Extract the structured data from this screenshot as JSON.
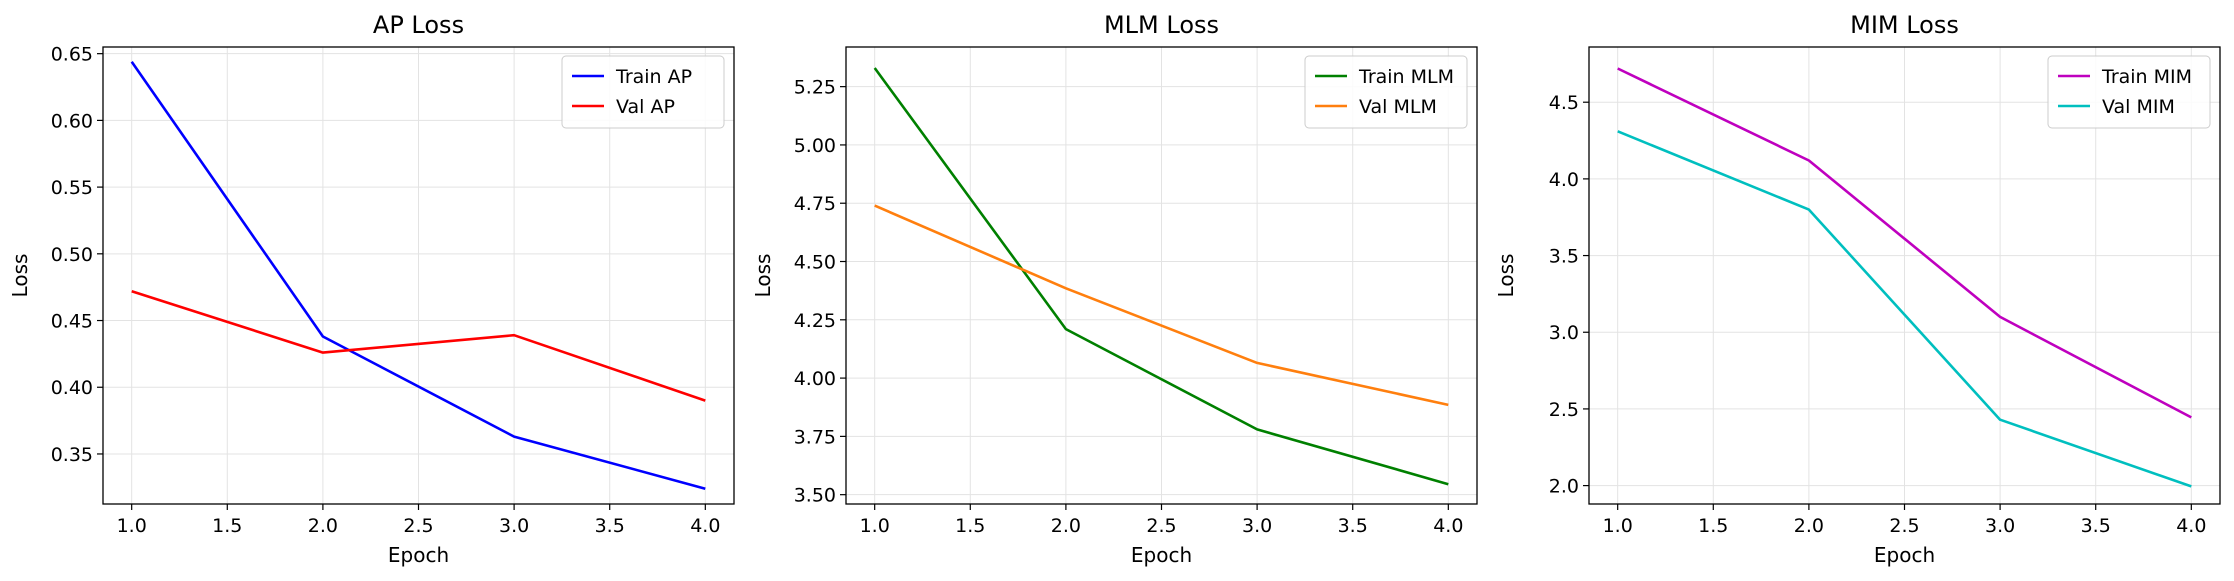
{
  "chart_data": [
    {
      "type": "line",
      "title": "AP Loss",
      "xlabel": "Epoch",
      "ylabel": "Loss",
      "xlim": [
        0.85,
        4.15
      ],
      "ylim": [
        0.3125,
        0.655
      ],
      "xticks": [
        1.0,
        1.5,
        2.0,
        2.5,
        3.0,
        3.5,
        4.0
      ],
      "xtick_labels": [
        "1.0",
        "1.5",
        "2.0",
        "2.5",
        "3.0",
        "3.5",
        "4.0"
      ],
      "yticks": [
        0.35,
        0.4,
        0.45,
        0.5,
        0.55,
        0.6,
        0.65
      ],
      "ytick_labels": [
        "0.35",
        "0.40",
        "0.45",
        "0.50",
        "0.55",
        "0.60",
        "0.65"
      ],
      "grid": true,
      "legend": "top-right",
      "x": [
        1,
        2,
        3,
        4
      ],
      "series": [
        {
          "name": "Train AP",
          "values": [
            0.644,
            0.438,
            0.363,
            0.324
          ],
          "color": "#0000ff"
        },
        {
          "name": "Val AP",
          "values": [
            0.472,
            0.426,
            0.439,
            0.39
          ],
          "color": "#ff0000"
        }
      ]
    },
    {
      "type": "line",
      "title": "MLM Loss",
      "xlabel": "Epoch",
      "ylabel": "Loss",
      "xlim": [
        0.85,
        4.15
      ],
      "ylim": [
        3.46,
        5.42
      ],
      "xticks": [
        1.0,
        1.5,
        2.0,
        2.5,
        3.0,
        3.5,
        4.0
      ],
      "xtick_labels": [
        "1.0",
        "1.5",
        "2.0",
        "2.5",
        "3.0",
        "3.5",
        "4.0"
      ],
      "yticks": [
        3.5,
        3.75,
        4.0,
        4.25,
        4.5,
        4.75,
        5.0,
        5.25
      ],
      "ytick_labels": [
        "3.50",
        "3.75",
        "4.00",
        "4.25",
        "4.50",
        "4.75",
        "5.00",
        "5.25"
      ],
      "grid": true,
      "legend": "top-right",
      "x": [
        1,
        2,
        3,
        4
      ],
      "series": [
        {
          "name": "Train MLM",
          "values": [
            5.33,
            4.21,
            3.78,
            3.545
          ],
          "color": "#008000"
        },
        {
          "name": "Val MLM",
          "values": [
            4.74,
            4.385,
            4.065,
            3.885
          ],
          "color": "#ff7f0e"
        }
      ]
    },
    {
      "type": "line",
      "title": "MIM Loss",
      "xlabel": "Epoch",
      "ylabel": "Loss",
      "xlim": [
        0.85,
        4.15
      ],
      "ylim": [
        1.88,
        4.86
      ],
      "xticks": [
        1.0,
        1.5,
        2.0,
        2.5,
        3.0,
        3.5,
        4.0
      ],
      "xtick_labels": [
        "1.0",
        "1.5",
        "2.0",
        "2.5",
        "3.0",
        "3.5",
        "4.0"
      ],
      "yticks": [
        2.0,
        2.5,
        3.0,
        3.5,
        4.0,
        4.5
      ],
      "ytick_labels": [
        "2.0",
        "2.5",
        "3.0",
        "3.5",
        "4.0",
        "4.5"
      ],
      "grid": true,
      "legend": "top-right",
      "x": [
        1,
        2,
        3,
        4
      ],
      "series": [
        {
          "name": "Train MIM",
          "values": [
            4.72,
            4.12,
            3.1,
            2.445
          ],
          "color": "#bf00bf"
        },
        {
          "name": "Val MIM",
          "values": [
            4.31,
            3.8,
            2.43,
            1.995
          ],
          "color": "#00bfbf"
        }
      ]
    }
  ]
}
